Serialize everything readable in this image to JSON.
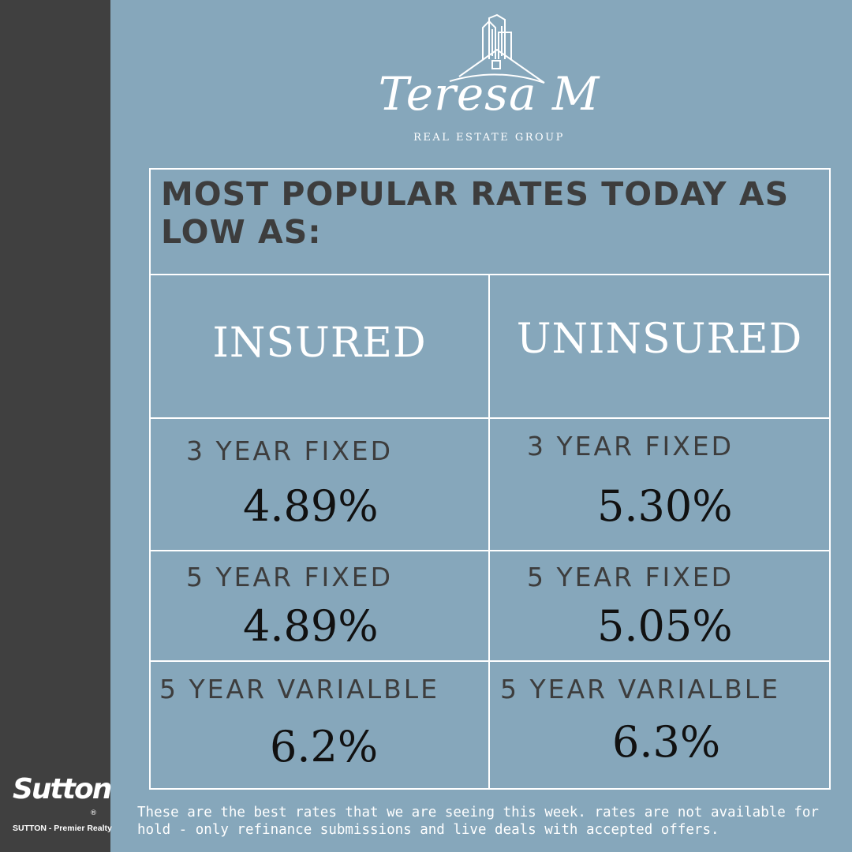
{
  "logo": {
    "script_text": "Teresa M",
    "subtitle": "REAL ESTATE GROUP"
  },
  "headline": "MOST POPULAR RATES TODAY AS LOW AS:",
  "columns": {
    "insured": "INSURED",
    "uninsured": "UNINSURED"
  },
  "rows": [
    {
      "label": "3 YEAR FIXED",
      "insured": "4.89%",
      "uninsured": "5.30%"
    },
    {
      "label": "5 YEAR FIXED",
      "insured": "4.89%",
      "uninsured": "5.05%"
    },
    {
      "label": "5 YEAR VARIALBLE",
      "insured": "6.2%",
      "uninsured": "6.3%"
    }
  ],
  "brokerage": {
    "name": "Sutton",
    "registered_mark": "®",
    "tagline": "SUTTON - Premier Realty"
  },
  "disclaimer": "These are the best rates that we are seeing this week. rates are not available for hold - only refinance submissions and live deals with accepted offers.",
  "colors": {
    "background": "#86a7bb",
    "side_bar": "#404040",
    "grid_lines": "#ffffff",
    "headline_text": "#3d3d3d",
    "rate_text": "#111111"
  }
}
